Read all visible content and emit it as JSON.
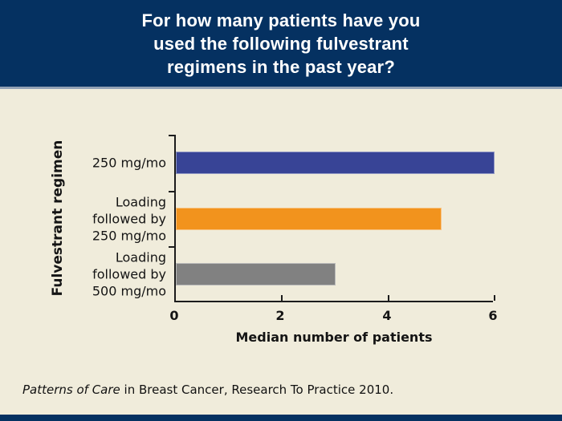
{
  "slide": {
    "title_lines": [
      "For how many patients have you",
      "used the following fulvestrant",
      "regimens in the past year?"
    ],
    "source_italic": "Patterns of Care",
    "source_rest": " in Breast Cancer, Research To Practice 2010."
  },
  "colors": {
    "header_bg": "#053161",
    "header_separator": "#93a1b4",
    "body_bg": "#f0ecdb",
    "bottom_band": "#053161",
    "axis": "#1c1c1c",
    "text": "#141414",
    "bar_blue": "#384496",
    "bar_orange": "#f2931d",
    "bar_gray": "#818181"
  },
  "chart_data": {
    "type": "bar",
    "orientation": "horizontal",
    "title": "For how many patients have you used the following fulvestrant regimens in the past year?",
    "categories": [
      "250 mg/mo",
      "Loading followed by 250 mg/mo",
      "Loading followed by 500 mg/mo"
    ],
    "values": [
      6,
      5,
      3
    ],
    "bar_colors": [
      "#384496",
      "#f2931d",
      "#818181"
    ],
    "xlabel": "Median number of patients",
    "ylabel": "Fulvestrant regimen",
    "xlim": [
      0,
      6
    ],
    "xticks": [
      0,
      2,
      4,
      6
    ],
    "grid": false,
    "legend": false
  }
}
